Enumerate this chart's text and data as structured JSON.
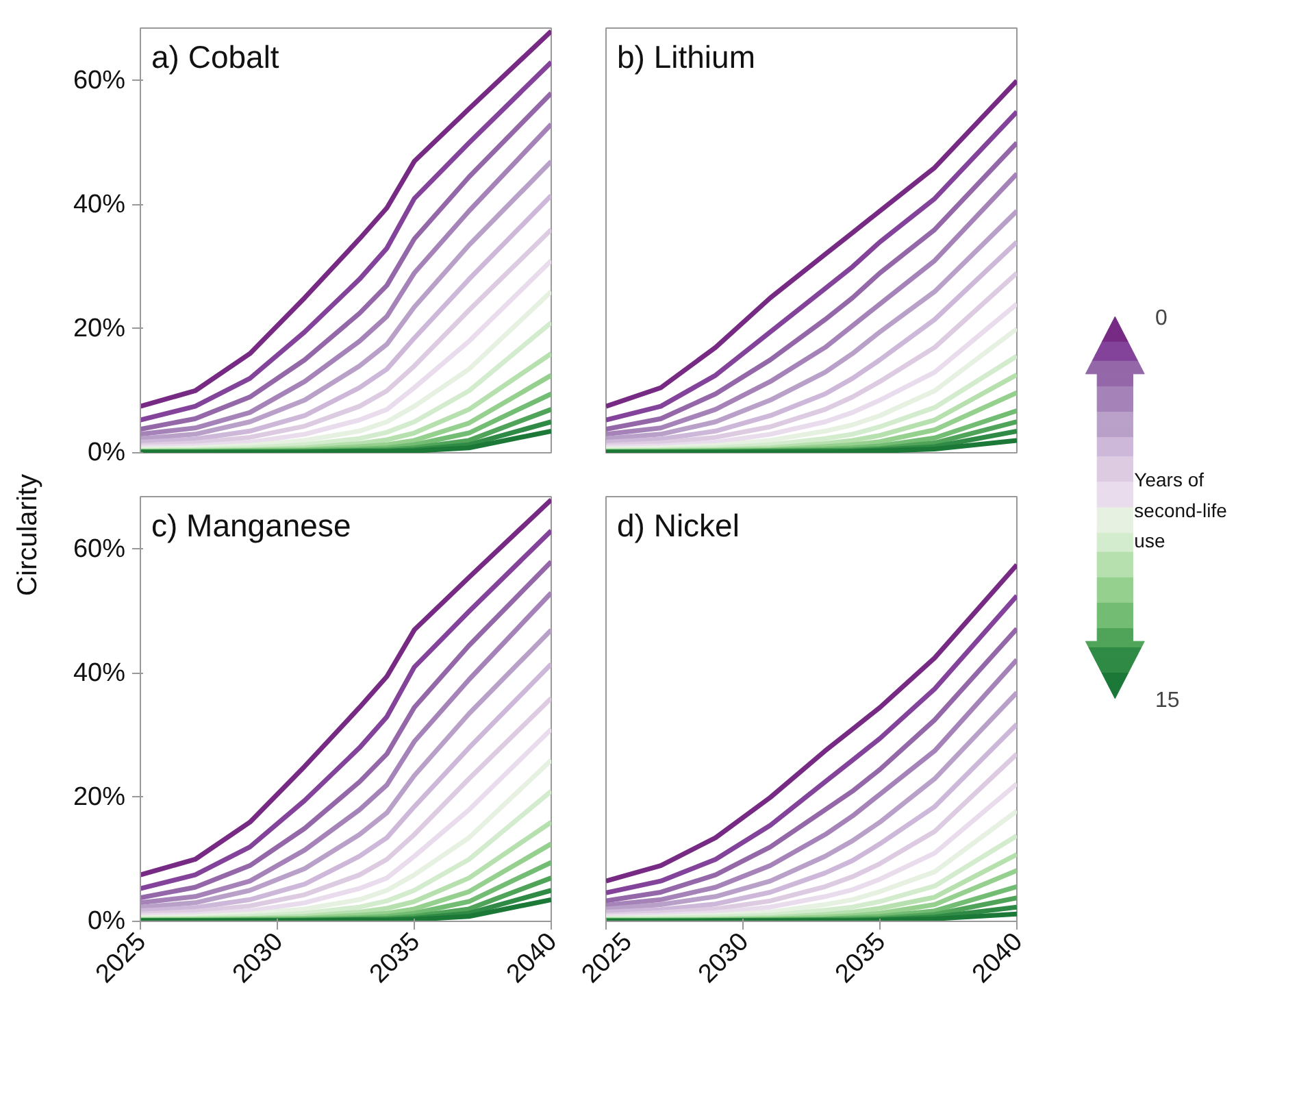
{
  "chart_data": [
    {
      "type": "line",
      "title": "a) Cobalt",
      "ylabel": "Circularity",
      "tick_labels": "y",
      "xlim": [
        2025,
        2040
      ],
      "ylim": [
        0,
        68.5
      ],
      "xticks": [
        2025,
        2030,
        2035,
        2040
      ],
      "yticks": [
        {
          "value": 0,
          "label": "0%"
        },
        {
          "value": 20,
          "label": "20%"
        },
        {
          "value": 40,
          "label": "40%"
        },
        {
          "value": 60,
          "label": "60%"
        }
      ],
      "x": [
        2025,
        2027,
        2029,
        2031,
        2033,
        2034,
        2035,
        2037,
        2040
      ],
      "series": [
        {
          "color": "#762a83",
          "values": [
            7.5,
            10,
            16,
            25,
            34.5,
            39.5,
            47,
            55.5,
            68
          ]
        },
        {
          "color": "#84439a",
          "values": [
            5.3,
            7.5,
            12,
            19.5,
            28,
            33,
            41,
            50,
            63
          ]
        },
        {
          "color": "#9467a8",
          "values": [
            3.8,
            5.5,
            9,
            15,
            22.5,
            27,
            34.5,
            44.5,
            58
          ]
        },
        {
          "color": "#a583b8",
          "values": [
            3,
            4,
            6.5,
            11.5,
            18,
            22,
            29,
            39,
            53
          ]
        },
        {
          "color": "#b9a0c8",
          "values": [
            2.3,
            3,
            5,
            8.5,
            14,
            17.5,
            23.5,
            33.5,
            47
          ]
        },
        {
          "color": "#cdb8d9",
          "values": [
            1.7,
            2.2,
            3.5,
            6,
            10.5,
            13.5,
            18.5,
            28,
            41.5
          ]
        },
        {
          "color": "#ddcbe2",
          "values": [
            1.2,
            1.6,
            2.5,
            4.3,
            7.5,
            10,
            14,
            23,
            36
          ]
        },
        {
          "color": "#e9dcec",
          "values": [
            0.9,
            1.1,
            1.7,
            3,
            5.3,
            7,
            10.5,
            18,
            31
          ]
        },
        {
          "color": "#e6f1e2",
          "values": [
            0.6,
            0.8,
            1.2,
            2,
            3.5,
            5,
            7.5,
            13.5,
            26
          ]
        },
        {
          "color": "#d4ecce",
          "values": [
            0.4,
            0.5,
            0.8,
            1.3,
            2.3,
            3.3,
            5,
            10,
            21
          ]
        },
        {
          "color": "#b6e0ae",
          "values": [
            0.3,
            0.4,
            0.5,
            0.8,
            1.5,
            2.1,
            3.2,
            7,
            16
          ]
        },
        {
          "color": "#95d08f",
          "values": [
            0.2,
            0.3,
            0.4,
            0.5,
            1,
            1.3,
            2,
            4.8,
            12.5
          ]
        },
        {
          "color": "#72bd73",
          "values": [
            0.2,
            0.2,
            0.3,
            0.4,
            0.6,
            0.8,
            1.3,
            3.2,
            9.5
          ]
        },
        {
          "color": "#50a459",
          "values": [
            0.1,
            0.1,
            0.2,
            0.2,
            0.4,
            0.5,
            0.8,
            2,
            7
          ]
        },
        {
          "color": "#2f8a45",
          "values": [
            0.1,
            0.1,
            0.1,
            0.2,
            0.3,
            0.3,
            0.5,
            1.3,
            5
          ]
        },
        {
          "color": "#1b7837",
          "values": [
            0.1,
            0.1,
            0.1,
            0.1,
            0.2,
            0.2,
            0.3,
            0.8,
            3.5
          ]
        }
      ]
    },
    {
      "type": "line",
      "title": "b) Lithium",
      "tick_labels": false,
      "clabel": "Years of second-life use",
      "clim": [
        0,
        15
      ],
      "cticks": [
        0,
        15
      ],
      "xlim": [
        2025,
        2040
      ],
      "ylim": [
        0,
        68.5
      ],
      "xticks": [
        2025,
        2030,
        2035,
        2040
      ],
      "yticks": [
        {
          "value": 0,
          "label": "0%"
        },
        {
          "value": 20,
          "label": "20%"
        },
        {
          "value": 40,
          "label": "40%"
        },
        {
          "value": 60,
          "label": "60%"
        }
      ],
      "x": [
        2025,
        2027,
        2029,
        2031,
        2033,
        2034,
        2035,
        2037,
        2040
      ],
      "series": [
        {
          "color": "#762a83",
          "values": [
            7.5,
            10.5,
            17,
            25,
            32,
            35.5,
            39,
            46,
            60
          ]
        },
        {
          "color": "#84439a",
          "values": [
            5.3,
            7.5,
            12.5,
            19.5,
            26.5,
            30,
            34,
            41,
            55
          ]
        },
        {
          "color": "#9467a8",
          "values": [
            3.8,
            5.5,
            9.5,
            15,
            21.5,
            25,
            29,
            36,
            50
          ]
        },
        {
          "color": "#a583b8",
          "values": [
            3,
            4,
            7,
            11.5,
            17,
            20.5,
            24,
            31,
            45
          ]
        },
        {
          "color": "#b9a0c8",
          "values": [
            2.3,
            3,
            5,
            8.5,
            13,
            16,
            19.5,
            26,
            39
          ]
        },
        {
          "color": "#cdb8d9",
          "values": [
            1.7,
            2.2,
            3.5,
            6,
            9.5,
            12,
            15,
            21.5,
            34
          ]
        },
        {
          "color": "#ddcbe2",
          "values": [
            1.2,
            1.6,
            2.5,
            4.2,
            7,
            9,
            11.5,
            17,
            29
          ]
        },
        {
          "color": "#e9dcec",
          "values": [
            0.9,
            1.1,
            1.7,
            3,
            5,
            6.5,
            8.5,
            13,
            24
          ]
        },
        {
          "color": "#e6f1e2",
          "values": [
            0.6,
            0.8,
            1.2,
            2,
            3.5,
            4.5,
            6,
            10,
            20
          ]
        },
        {
          "color": "#d4ecce",
          "values": [
            0.4,
            0.5,
            0.8,
            1.3,
            2.3,
            3,
            4.2,
            7.3,
            15.6
          ]
        },
        {
          "color": "#b6e0ae",
          "values": [
            0.3,
            0.4,
            0.5,
            0.8,
            1.5,
            2,
            2.8,
            5.3,
            12.6
          ]
        },
        {
          "color": "#95d08f",
          "values": [
            0.2,
            0.3,
            0.4,
            0.5,
            1,
            1.3,
            1.8,
            3.7,
            9.7
          ]
        },
        {
          "color": "#72bd73",
          "values": [
            0.2,
            0.2,
            0.3,
            0.4,
            0.6,
            0.8,
            1.1,
            2.4,
            6.8
          ]
        },
        {
          "color": "#50a459",
          "values": [
            0.1,
            0.1,
            0.2,
            0.3,
            0.4,
            0.5,
            0.7,
            1.6,
            5
          ]
        },
        {
          "color": "#2f8a45",
          "values": [
            0.1,
            0.1,
            0.1,
            0.2,
            0.3,
            0.3,
            0.5,
            1,
            3.5
          ]
        },
        {
          "color": "#1b7837",
          "values": [
            0.1,
            0.1,
            0.1,
            0.1,
            0.1,
            0.2,
            0.3,
            0.6,
            2
          ]
        }
      ]
    },
    {
      "type": "line",
      "title": "c) Manganese",
      "xlim": [
        2025,
        2040
      ],
      "ylim": [
        0,
        68.5
      ],
      "xticks": [
        2025,
        2030,
        2035,
        2040
      ],
      "yticks": [
        {
          "value": 0,
          "label": "0%"
        },
        {
          "value": 20,
          "label": "20%"
        },
        {
          "value": 40,
          "label": "40%"
        },
        {
          "value": 60,
          "label": "60%"
        }
      ],
      "x": [
        2025,
        2027,
        2029,
        2031,
        2033,
        2034,
        2035,
        2037,
        2040
      ],
      "series": [
        {
          "color": "#762a83",
          "values": [
            7.5,
            10,
            16,
            25,
            34.5,
            39.5,
            47,
            55.5,
            68
          ]
        },
        {
          "color": "#84439a",
          "values": [
            5.3,
            7.5,
            12,
            19.5,
            28,
            33,
            41,
            50,
            63
          ]
        },
        {
          "color": "#9467a8",
          "values": [
            3.8,
            5.5,
            9,
            15,
            22.5,
            27,
            34.5,
            44.5,
            58
          ]
        },
        {
          "color": "#a583b8",
          "values": [
            3,
            4,
            6.5,
            11.5,
            18,
            22,
            29,
            39,
            53
          ]
        },
        {
          "color": "#b9a0c8",
          "values": [
            2.3,
            3,
            5,
            8.5,
            14,
            17.5,
            23.5,
            33.5,
            47
          ]
        },
        {
          "color": "#cdb8d9",
          "values": [
            1.7,
            2.2,
            3.5,
            6,
            10.5,
            13.5,
            18.5,
            28,
            41.5
          ]
        },
        {
          "color": "#ddcbe2",
          "values": [
            1.2,
            1.6,
            2.5,
            4.3,
            7.5,
            10,
            14,
            23,
            36
          ]
        },
        {
          "color": "#e9dcec",
          "values": [
            0.9,
            1.1,
            1.7,
            3,
            5.3,
            7,
            10.5,
            18,
            31
          ]
        },
        {
          "color": "#e6f1e2",
          "values": [
            0.6,
            0.8,
            1.2,
            2,
            3.5,
            5,
            7.5,
            13.5,
            26
          ]
        },
        {
          "color": "#d4ecce",
          "values": [
            0.4,
            0.5,
            0.8,
            1.3,
            2.3,
            3.3,
            5,
            10,
            21
          ]
        },
        {
          "color": "#b6e0ae",
          "values": [
            0.3,
            0.4,
            0.5,
            0.8,
            1.5,
            2.1,
            3.2,
            7,
            16
          ]
        },
        {
          "color": "#95d08f",
          "values": [
            0.2,
            0.3,
            0.4,
            0.5,
            1,
            1.3,
            2,
            4.8,
            12.5
          ]
        },
        {
          "color": "#72bd73",
          "values": [
            0.2,
            0.2,
            0.3,
            0.4,
            0.6,
            0.8,
            1.3,
            3.2,
            9.5
          ]
        },
        {
          "color": "#50a459",
          "values": [
            0.1,
            0.1,
            0.2,
            0.2,
            0.4,
            0.5,
            0.8,
            2,
            7
          ]
        },
        {
          "color": "#2f8a45",
          "values": [
            0.1,
            0.1,
            0.1,
            0.2,
            0.3,
            0.3,
            0.5,
            1.3,
            5
          ]
        },
        {
          "color": "#1b7837",
          "values": [
            0.1,
            0.1,
            0.1,
            0.1,
            0.2,
            0.2,
            0.3,
            0.8,
            3.5
          ]
        }
      ]
    },
    {
      "type": "line",
      "title": "d) Nickel",
      "tick_labels": "x",
      "xlim": [
        2025,
        2040
      ],
      "ylim": [
        0,
        68.5
      ],
      "xticks": [
        2025,
        2030,
        2035,
        2040
      ],
      "yticks": [
        {
          "value": 0,
          "label": "0%"
        },
        {
          "value": 20,
          "label": "20%"
        },
        {
          "value": 40,
          "label": "40%"
        },
        {
          "value": 60,
          "label": "60%"
        }
      ],
      "x": [
        2025,
        2027,
        2029,
        2031,
        2033,
        2034,
        2035,
        2037,
        2040
      ],
      "series": [
        {
          "color": "#762a83",
          "values": [
            6.5,
            9,
            13.5,
            20,
            27.5,
            31,
            34.5,
            42.5,
            57.5
          ]
        },
        {
          "color": "#84439a",
          "values": [
            4.6,
            6.5,
            10,
            15.5,
            22.5,
            26,
            29.5,
            37.5,
            52.5
          ]
        },
        {
          "color": "#9467a8",
          "values": [
            3.3,
            4.7,
            7.5,
            12,
            18,
            21,
            24.5,
            32.5,
            47.2
          ]
        },
        {
          "color": "#a583b8",
          "values": [
            2.6,
            3.5,
            5.5,
            9,
            14,
            17,
            20.5,
            27.5,
            42.2
          ]
        },
        {
          "color": "#b9a0c8",
          "values": [
            2,
            2.7,
            4,
            6.5,
            10.5,
            13,
            16,
            23,
            36.9
          ]
        },
        {
          "color": "#cdb8d9",
          "values": [
            1.5,
            1.9,
            2.8,
            4.7,
            7.8,
            9.8,
            12.5,
            18.5,
            31.8
          ]
        },
        {
          "color": "#ddcbe2",
          "values": [
            1,
            1.4,
            2,
            3.3,
            5.6,
            7.2,
            9.3,
            14.5,
            27
          ]
        },
        {
          "color": "#e9dcec",
          "values": [
            0.8,
            1,
            1.4,
            2.3,
            4,
            5.1,
            6.8,
            11,
            22.2
          ]
        },
        {
          "color": "#e6f1e2",
          "values": [
            0.5,
            0.7,
            1,
            1.5,
            2.7,
            3.5,
            4.8,
            8,
            17.8
          ]
        },
        {
          "color": "#d4ecce",
          "values": [
            0.4,
            0.5,
            0.7,
            1,
            1.8,
            2.3,
            3.2,
            5.7,
            13.8
          ]
        },
        {
          "color": "#b6e0ae",
          "values": [
            0.3,
            0.3,
            0.4,
            0.6,
            1.1,
            1.5,
            2.1,
            3.9,
            10.8
          ]
        },
        {
          "color": "#95d08f",
          "values": [
            0.2,
            0.2,
            0.3,
            0.4,
            0.7,
            0.9,
            1.3,
            2.7,
            8.2
          ]
        },
        {
          "color": "#72bd73",
          "values": [
            0.1,
            0.2,
            0.2,
            0.3,
            0.4,
            0.6,
            0.8,
            1.7,
            5.6
          ]
        },
        {
          "color": "#50a459",
          "values": [
            0.1,
            0.1,
            0.1,
            0.2,
            0.3,
            0.4,
            0.5,
            1.1,
            3.8
          ]
        },
        {
          "color": "#2f8a45",
          "values": [
            0.1,
            0.1,
            0.1,
            0.1,
            0.2,
            0.2,
            0.3,
            0.7,
            2.3
          ]
        },
        {
          "color": "#1b7837",
          "values": [
            0,
            0,
            0.1,
            0.1,
            0.1,
            0.1,
            0.2,
            0.4,
            1.2
          ]
        }
      ]
    }
  ]
}
